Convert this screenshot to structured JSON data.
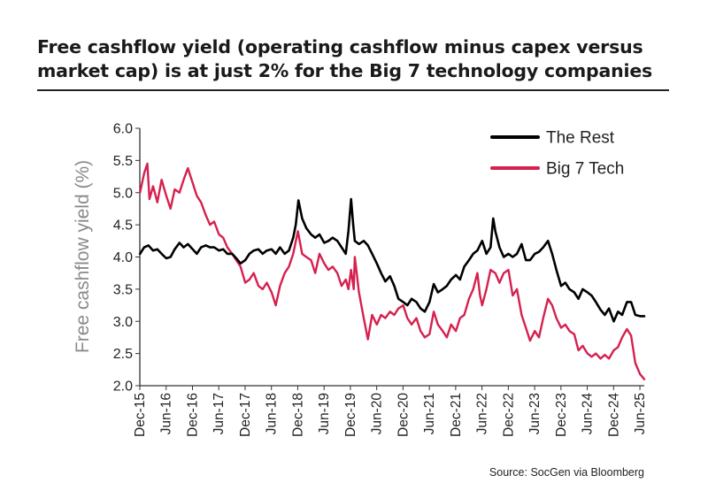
{
  "chart_data": {
    "type": "line",
    "title": "Free cashflow yield (operating cashflow minus capex versus market cap) is at just 2% for the Big 7 technology companies",
    "ylabel": "Free cashflow yield (%)",
    "xlabel": "",
    "ylim": [
      2.0,
      6.0
    ],
    "yticks": [
      "6.0",
      "5.5",
      "5.0",
      "4.5",
      "4.0",
      "3.5",
      "3.0",
      "2.5",
      "2.0"
    ],
    "xlim": [
      2015.917,
      2025.5
    ],
    "xticks": [
      {
        "label": "Dec-15",
        "t": 2015.917
      },
      {
        "label": "Jun-16",
        "t": 2016.417
      },
      {
        "label": "Dec-16",
        "t": 2016.917
      },
      {
        "label": "Jun-17",
        "t": 2017.417
      },
      {
        "label": "Dec-17",
        "t": 2017.917
      },
      {
        "label": "Jun-18",
        "t": 2018.417
      },
      {
        "label": "Dec-18",
        "t": 2018.917
      },
      {
        "label": "Jun-19",
        "t": 2019.417
      },
      {
        "label": "Dec-19",
        "t": 2019.917
      },
      {
        "label": "Jun-20",
        "t": 2020.417
      },
      {
        "label": "Dec-20",
        "t": 2020.917
      },
      {
        "label": "Jun-21",
        "t": 2021.417
      },
      {
        "label": "Dec-21",
        "t": 2021.917
      },
      {
        "label": "Jun-22",
        "t": 2022.417
      },
      {
        "label": "Dec-22",
        "t": 2022.917
      },
      {
        "label": "Jun-23",
        "t": 2023.417
      },
      {
        "label": "Dec-23",
        "t": 2023.917
      },
      {
        "label": "Jun-24",
        "t": 2024.417
      },
      {
        "label": "Dec-24",
        "t": 2024.917
      },
      {
        "label": "Jun-25",
        "t": 2025.417
      }
    ],
    "grid": false,
    "legend_position": "top-right",
    "series": [
      {
        "name": "The Rest",
        "color": "#000000",
        "points": [
          [
            2015.92,
            4.05
          ],
          [
            2016.0,
            4.15
          ],
          [
            2016.08,
            4.18
          ],
          [
            2016.17,
            4.1
          ],
          [
            2016.25,
            4.12
          ],
          [
            2016.33,
            4.05
          ],
          [
            2016.42,
            3.98
          ],
          [
            2016.5,
            4.0
          ],
          [
            2016.58,
            4.12
          ],
          [
            2016.67,
            4.22
          ],
          [
            2016.75,
            4.15
          ],
          [
            2016.83,
            4.2
          ],
          [
            2016.92,
            4.12
          ],
          [
            2017.0,
            4.05
          ],
          [
            2017.08,
            4.15
          ],
          [
            2017.17,
            4.18
          ],
          [
            2017.25,
            4.15
          ],
          [
            2017.33,
            4.15
          ],
          [
            2017.42,
            4.1
          ],
          [
            2017.5,
            4.12
          ],
          [
            2017.58,
            4.05
          ],
          [
            2017.67,
            4.05
          ],
          [
            2017.75,
            3.98
          ],
          [
            2017.83,
            3.9
          ],
          [
            2017.92,
            3.95
          ],
          [
            2018.0,
            4.05
          ],
          [
            2018.08,
            4.1
          ],
          [
            2018.17,
            4.12
          ],
          [
            2018.25,
            4.05
          ],
          [
            2018.33,
            4.1
          ],
          [
            2018.42,
            4.12
          ],
          [
            2018.5,
            4.05
          ],
          [
            2018.58,
            4.15
          ],
          [
            2018.67,
            4.05
          ],
          [
            2018.75,
            4.1
          ],
          [
            2018.83,
            4.3
          ],
          [
            2018.88,
            4.5
          ],
          [
            2018.93,
            4.88
          ],
          [
            2019.0,
            4.6
          ],
          [
            2019.08,
            4.45
          ],
          [
            2019.17,
            4.35
          ],
          [
            2019.25,
            4.3
          ],
          [
            2019.33,
            4.35
          ],
          [
            2019.42,
            4.22
          ],
          [
            2019.5,
            4.25
          ],
          [
            2019.58,
            4.3
          ],
          [
            2019.67,
            4.25
          ],
          [
            2019.75,
            4.15
          ],
          [
            2019.83,
            4.05
          ],
          [
            2019.88,
            4.4
          ],
          [
            2019.93,
            4.9
          ],
          [
            2019.97,
            4.5
          ],
          [
            2020.0,
            4.25
          ],
          [
            2020.08,
            4.2
          ],
          [
            2020.17,
            4.25
          ],
          [
            2020.25,
            4.18
          ],
          [
            2020.33,
            4.05
          ],
          [
            2020.42,
            3.9
          ],
          [
            2020.5,
            3.75
          ],
          [
            2020.58,
            3.62
          ],
          [
            2020.67,
            3.7
          ],
          [
            2020.75,
            3.55
          ],
          [
            2020.83,
            3.35
          ],
          [
            2020.92,
            3.3
          ],
          [
            2021.0,
            3.25
          ],
          [
            2021.08,
            3.35
          ],
          [
            2021.17,
            3.3
          ],
          [
            2021.25,
            3.2
          ],
          [
            2021.33,
            3.15
          ],
          [
            2021.42,
            3.3
          ],
          [
            2021.5,
            3.58
          ],
          [
            2021.58,
            3.45
          ],
          [
            2021.67,
            3.5
          ],
          [
            2021.75,
            3.55
          ],
          [
            2021.83,
            3.65
          ],
          [
            2021.92,
            3.72
          ],
          [
            2022.0,
            3.65
          ],
          [
            2022.08,
            3.85
          ],
          [
            2022.17,
            3.95
          ],
          [
            2022.25,
            4.05
          ],
          [
            2022.33,
            4.1
          ],
          [
            2022.42,
            4.25
          ],
          [
            2022.5,
            4.05
          ],
          [
            2022.58,
            4.15
          ],
          [
            2022.63,
            4.6
          ],
          [
            2022.67,
            4.4
          ],
          [
            2022.75,
            4.15
          ],
          [
            2022.83,
            4.0
          ],
          [
            2022.92,
            4.05
          ],
          [
            2023.0,
            4.0
          ],
          [
            2023.08,
            4.05
          ],
          [
            2023.17,
            4.2
          ],
          [
            2023.25,
            3.95
          ],
          [
            2023.33,
            3.95
          ],
          [
            2023.42,
            4.05
          ],
          [
            2023.5,
            4.08
          ],
          [
            2023.58,
            4.15
          ],
          [
            2023.67,
            4.25
          ],
          [
            2023.75,
            4.05
          ],
          [
            2023.83,
            3.8
          ],
          [
            2023.92,
            3.55
          ],
          [
            2024.0,
            3.6
          ],
          [
            2024.08,
            3.5
          ],
          [
            2024.17,
            3.45
          ],
          [
            2024.25,
            3.35
          ],
          [
            2024.33,
            3.5
          ],
          [
            2024.42,
            3.45
          ],
          [
            2024.5,
            3.4
          ],
          [
            2024.58,
            3.3
          ],
          [
            2024.67,
            3.18
          ],
          [
            2024.75,
            3.1
          ],
          [
            2024.83,
            3.2
          ],
          [
            2024.92,
            3.0
          ],
          [
            2025.0,
            3.15
          ],
          [
            2025.08,
            3.1
          ],
          [
            2025.17,
            3.3
          ],
          [
            2025.25,
            3.3
          ],
          [
            2025.33,
            3.1
          ],
          [
            2025.42,
            3.08
          ],
          [
            2025.5,
            3.08
          ]
        ]
      },
      {
        "name": "Big 7 Tech",
        "color": "#d6204e",
        "points": [
          [
            2015.92,
            5.0
          ],
          [
            2016.0,
            5.3
          ],
          [
            2016.06,
            5.45
          ],
          [
            2016.1,
            4.9
          ],
          [
            2016.17,
            5.1
          ],
          [
            2016.25,
            4.85
          ],
          [
            2016.33,
            5.2
          ],
          [
            2016.42,
            4.95
          ],
          [
            2016.5,
            4.75
          ],
          [
            2016.58,
            5.05
          ],
          [
            2016.67,
            5.0
          ],
          [
            2016.75,
            5.2
          ],
          [
            2016.83,
            5.38
          ],
          [
            2016.92,
            5.15
          ],
          [
            2017.0,
            4.95
          ],
          [
            2017.08,
            4.85
          ],
          [
            2017.17,
            4.65
          ],
          [
            2017.25,
            4.5
          ],
          [
            2017.33,
            4.55
          ],
          [
            2017.42,
            4.35
          ],
          [
            2017.5,
            4.3
          ],
          [
            2017.58,
            4.15
          ],
          [
            2017.67,
            4.05
          ],
          [
            2017.75,
            3.95
          ],
          [
            2017.83,
            3.85
          ],
          [
            2017.92,
            3.6
          ],
          [
            2018.0,
            3.65
          ],
          [
            2018.08,
            3.75
          ],
          [
            2018.17,
            3.55
          ],
          [
            2018.25,
            3.5
          ],
          [
            2018.33,
            3.6
          ],
          [
            2018.42,
            3.45
          ],
          [
            2018.5,
            3.25
          ],
          [
            2018.58,
            3.55
          ],
          [
            2018.67,
            3.75
          ],
          [
            2018.75,
            3.85
          ],
          [
            2018.83,
            4.05
          ],
          [
            2018.92,
            4.4
          ],
          [
            2019.0,
            4.05
          ],
          [
            2019.08,
            4.0
          ],
          [
            2019.17,
            3.95
          ],
          [
            2019.25,
            3.75
          ],
          [
            2019.33,
            4.05
          ],
          [
            2019.42,
            3.9
          ],
          [
            2019.5,
            3.8
          ],
          [
            2019.58,
            3.85
          ],
          [
            2019.67,
            3.75
          ],
          [
            2019.75,
            3.55
          ],
          [
            2019.83,
            3.65
          ],
          [
            2019.88,
            3.5
          ],
          [
            2019.93,
            3.8
          ],
          [
            2019.98,
            3.5
          ],
          [
            2020.0,
            4.0
          ],
          [
            2020.08,
            3.45
          ],
          [
            2020.17,
            3.05
          ],
          [
            2020.25,
            2.72
          ],
          [
            2020.33,
            3.1
          ],
          [
            2020.42,
            2.95
          ],
          [
            2020.5,
            3.1
          ],
          [
            2020.58,
            3.05
          ],
          [
            2020.67,
            3.15
          ],
          [
            2020.75,
            3.1
          ],
          [
            2020.83,
            3.2
          ],
          [
            2020.92,
            3.25
          ],
          [
            2021.0,
            3.05
          ],
          [
            2021.08,
            2.95
          ],
          [
            2021.17,
            3.05
          ],
          [
            2021.25,
            2.85
          ],
          [
            2021.33,
            2.75
          ],
          [
            2021.42,
            2.8
          ],
          [
            2021.5,
            3.15
          ],
          [
            2021.58,
            2.95
          ],
          [
            2021.67,
            2.85
          ],
          [
            2021.75,
            2.75
          ],
          [
            2021.83,
            2.95
          ],
          [
            2021.92,
            2.85
          ],
          [
            2022.0,
            3.05
          ],
          [
            2022.08,
            3.1
          ],
          [
            2022.17,
            3.35
          ],
          [
            2022.25,
            3.5
          ],
          [
            2022.33,
            3.75
          ],
          [
            2022.38,
            3.4
          ],
          [
            2022.42,
            3.25
          ],
          [
            2022.5,
            3.5
          ],
          [
            2022.58,
            3.8
          ],
          [
            2022.67,
            3.75
          ],
          [
            2022.75,
            3.6
          ],
          [
            2022.83,
            3.75
          ],
          [
            2022.92,
            3.8
          ],
          [
            2023.0,
            3.4
          ],
          [
            2023.08,
            3.5
          ],
          [
            2023.17,
            3.1
          ],
          [
            2023.25,
            2.9
          ],
          [
            2023.33,
            2.7
          ],
          [
            2023.42,
            2.85
          ],
          [
            2023.5,
            2.75
          ],
          [
            2023.58,
            3.05
          ],
          [
            2023.67,
            3.35
          ],
          [
            2023.75,
            3.25
          ],
          [
            2023.83,
            3.05
          ],
          [
            2023.92,
            2.9
          ],
          [
            2024.0,
            2.95
          ],
          [
            2024.08,
            2.85
          ],
          [
            2024.17,
            2.8
          ],
          [
            2024.25,
            2.55
          ],
          [
            2024.33,
            2.62
          ],
          [
            2024.42,
            2.5
          ],
          [
            2024.5,
            2.45
          ],
          [
            2024.58,
            2.5
          ],
          [
            2024.67,
            2.42
          ],
          [
            2024.75,
            2.48
          ],
          [
            2024.83,
            2.42
          ],
          [
            2024.92,
            2.55
          ],
          [
            2025.0,
            2.6
          ],
          [
            2025.08,
            2.75
          ],
          [
            2025.17,
            2.88
          ],
          [
            2025.25,
            2.78
          ],
          [
            2025.33,
            2.35
          ],
          [
            2025.42,
            2.18
          ],
          [
            2025.5,
            2.1
          ]
        ]
      }
    ]
  },
  "source": "Source: SocGen via Bloomberg"
}
